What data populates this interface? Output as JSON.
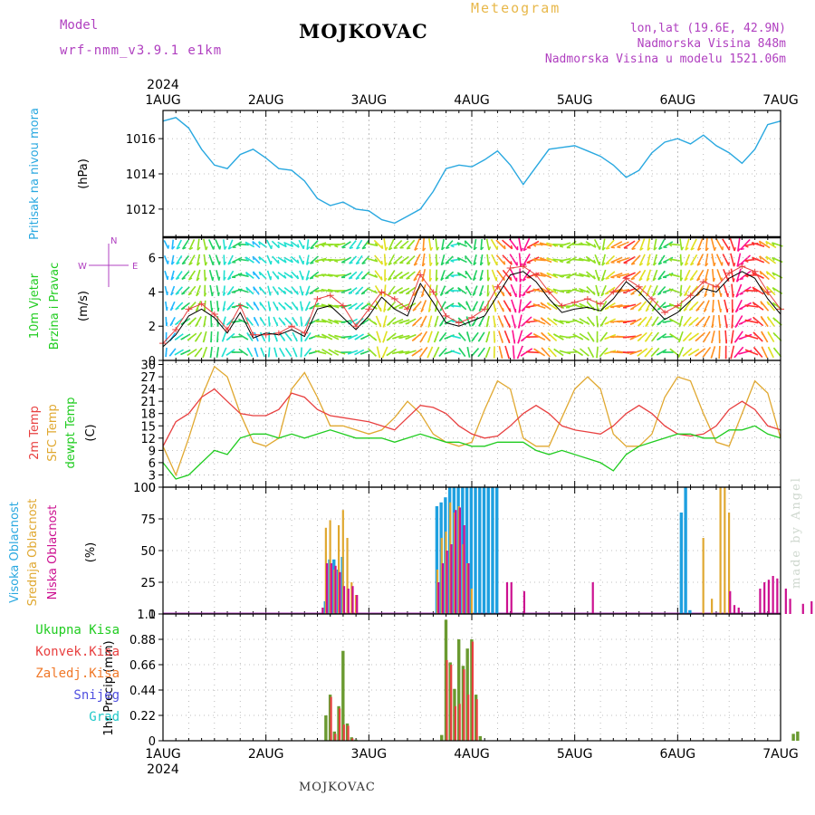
{
  "header": {
    "model_label": "Model",
    "model_name": "wrf-nmm_v3.9.1 e1km",
    "title": "Meteogram",
    "station": "MOJKOVAC",
    "lonlat": "lon,lat (19.6E, 42.9N)",
    "height": "Nadmorska Visina 848m",
    "model_height": "Nadmorska Visina u modelu 1521.06m"
  },
  "footer": {
    "station": "MOJKOVAC",
    "credit": "made by Angel"
  },
  "colors": {
    "pressure": "#29a8e0",
    "temp2m": "#e84040",
    "sfc_temp": "#e0a830",
    "dewpt": "#20cc20",
    "cloud_high": "#1ea0e0",
    "cloud_mid": "#e0a830",
    "cloud_low": "#cc1090",
    "precip_total": "#6a9a30",
    "precip_conv": "#e84040",
    "grid": "#aaaaaa",
    "label_purple": "#b040c0"
  },
  "chart_data": [
    {
      "type": "line",
      "panel": "pressure",
      "ylabel": [
        "Pritisak na nivou mora",
        "(hPa)"
      ],
      "x_ticks": [
        "1AUG",
        "2AUG",
        "3AUG",
        "4AUG",
        "5AUG",
        "6AUG",
        "7AUG"
      ],
      "x_year": "2024",
      "ylim": [
        1010.4,
        1017.6
      ],
      "yticks": [
        1012,
        1014,
        1016
      ],
      "x_unit": "hours from 1AUG 00",
      "x": [
        0,
        3,
        6,
        9,
        12,
        15,
        18,
        21,
        24,
        27,
        30,
        33,
        36,
        39,
        42,
        45,
        48,
        51,
        54,
        57,
        60,
        63,
        66,
        69,
        72,
        75,
        78,
        81,
        84,
        87,
        90,
        93,
        96,
        99,
        102,
        105,
        108,
        111,
        114,
        117,
        120,
        123,
        126,
        129,
        132,
        135,
        138,
        141,
        144
      ],
      "series": [
        {
          "values": [
            1017.0,
            1017.2,
            1016.6,
            1015.4,
            1014.5,
            1014.3,
            1015.1,
            1015.4,
            1014.9,
            1014.3,
            1014.2,
            1013.6,
            1012.6,
            1012.2,
            1012.4,
            1012.0,
            1011.9,
            1011.4,
            1011.2,
            1011.6,
            1012.0,
            1013.0,
            1014.3,
            1014.5,
            1014.4,
            1014.8,
            1015.3,
            1014.5,
            1013.4,
            1014.4,
            1015.4,
            1015.5,
            1015.6,
            1015.3,
            1015.0,
            1014.5,
            1013.8,
            1014.2,
            1015.2,
            1015.8,
            1016.0,
            1015.7,
            1016.2,
            1015.6,
            1015.2,
            1014.6,
            1015.4,
            1016.8,
            1017.0
          ]
        }
      ]
    },
    {
      "type": "line",
      "panel": "wind",
      "ylabel": [
        "10m Vjetar",
        "Brzina i Pravac",
        "(m/s)"
      ],
      "compass": [
        "N",
        "W",
        "E"
      ],
      "ylim": [
        0,
        7.2
      ],
      "yticks": [
        0,
        2,
        4,
        6
      ],
      "x_unit": "hours from 1AUG 00",
      "x": [
        0,
        3,
        6,
        9,
        12,
        15,
        18,
        21,
        24,
        27,
        30,
        33,
        36,
        39,
        42,
        45,
        48,
        51,
        54,
        57,
        60,
        63,
        66,
        69,
        72,
        75,
        78,
        81,
        84,
        87,
        90,
        93,
        96,
        99,
        102,
        105,
        108,
        111,
        114,
        117,
        120,
        123,
        126,
        129,
        132,
        135,
        138,
        141,
        144
      ],
      "series": [
        {
          "name": "speed",
          "values": [
            0.8,
            1.5,
            2.6,
            3.0,
            2.5,
            1.6,
            2.8,
            1.3,
            1.6,
            1.5,
            1.8,
            1.4,
            3.0,
            3.2,
            2.5,
            1.8,
            2.6,
            3.7,
            3.0,
            2.6,
            4.5,
            3.4,
            2.2,
            2.0,
            2.3,
            2.6,
            3.8,
            5.0,
            5.2,
            4.6,
            3.6,
            2.8,
            3.0,
            3.1,
            2.9,
            3.6,
            4.6,
            4.0,
            3.2,
            2.4,
            2.8,
            3.5,
            4.2,
            4.0,
            4.8,
            5.2,
            4.8,
            3.6,
            2.7
          ]
        },
        {
          "name": "gust",
          "values": [
            1.0,
            1.8,
            3.0,
            3.3,
            2.7,
            1.8,
            3.2,
            1.5,
            1.5,
            1.6,
            2.0,
            1.6,
            3.6,
            3.8,
            3.2,
            2.0,
            3.0,
            4.0,
            3.6,
            3.0,
            5.0,
            4.0,
            2.6,
            2.2,
            2.5,
            3.0,
            4.3,
            5.4,
            5.5,
            5.0,
            4.0,
            3.2,
            3.4,
            3.6,
            3.3,
            4.0,
            4.8,
            4.3,
            3.6,
            2.8,
            3.2,
            3.8,
            4.6,
            4.3,
            5.1,
            5.5,
            5.2,
            4.0,
            3.0
          ]
        }
      ]
    },
    {
      "type": "line",
      "panel": "temperature",
      "ylabel": [
        "2m Temp",
        "SFC Temp",
        "dewpt Temp",
        "(C)"
      ],
      "ylim": [
        0,
        31
      ],
      "yticks": [
        0,
        3,
        6,
        9,
        12,
        15,
        18,
        21,
        24,
        27,
        30
      ],
      "x_unit": "hours from 1AUG 00",
      "x": [
        0,
        3,
        6,
        9,
        12,
        15,
        18,
        21,
        24,
        27,
        30,
        33,
        36,
        39,
        42,
        45,
        48,
        51,
        54,
        57,
        60,
        63,
        66,
        69,
        72,
        75,
        78,
        81,
        84,
        87,
        90,
        93,
        96,
        99,
        102,
        105,
        108,
        111,
        114,
        117,
        120,
        123,
        126,
        129,
        132,
        135,
        138,
        141,
        144
      ],
      "series": [
        {
          "name": "2m Temp",
          "values": [
            10,
            16,
            18,
            22,
            24,
            21,
            18,
            17.5,
            17.5,
            19,
            23,
            22,
            19,
            17.5,
            17,
            16.5,
            16,
            15,
            14,
            17,
            20,
            19.5,
            18,
            15,
            13,
            12,
            12.5,
            15,
            18,
            20,
            18,
            15,
            14,
            13.5,
            13,
            15,
            18,
            20,
            18,
            15,
            13,
            12.5,
            13,
            15,
            19,
            21,
            19,
            15,
            14
          ]
        },
        {
          "name": "SFC Temp",
          "values": [
            10,
            3,
            12,
            22,
            29.5,
            27,
            18,
            11,
            10,
            12,
            24,
            28,
            22,
            15,
            15,
            14,
            13,
            14,
            17,
            21,
            18,
            13,
            11,
            10,
            11,
            19,
            26,
            24,
            12,
            10,
            10,
            17,
            24,
            27,
            24,
            13,
            10,
            10,
            13,
            22,
            27,
            26,
            18,
            11,
            10,
            18,
            26,
            23,
            12
          ]
        },
        {
          "name": "dewpt Temp",
          "values": [
            6,
            2,
            3,
            6,
            9,
            8,
            12,
            13,
            13,
            12,
            13,
            12,
            13,
            14,
            13,
            12,
            12,
            12,
            11,
            12,
            13,
            12,
            11,
            11,
            10,
            10,
            11,
            11,
            11,
            9,
            8,
            9,
            8,
            7,
            6,
            4,
            8,
            10,
            11,
            12,
            13,
            13,
            12,
            12,
            14,
            14,
            15,
            13,
            12
          ]
        }
      ]
    },
    {
      "type": "bar",
      "panel": "clouds",
      "ylabel": [
        "Visoka Oblacnost",
        "Srednja Oblacnost",
        "Niska Oblacnost",
        "(%)"
      ],
      "ylim": [
        0,
        100
      ],
      "yticks": [
        0,
        25,
        50,
        75,
        100
      ],
      "x_unit": "hours from 1AUG 00",
      "series": [
        {
          "name": "Visoka Oblacnost",
          "x": [
            38,
            39,
            40,
            41,
            42,
            64,
            65,
            66,
            67,
            68,
            69,
            70,
            71,
            72,
            73,
            74,
            75,
            76,
            77,
            78,
            121,
            122,
            123
          ],
          "values": [
            10,
            43,
            43,
            35,
            45,
            85,
            88,
            92,
            100,
            100,
            100,
            100,
            100,
            100,
            100,
            100,
            100,
            100,
            100,
            100,
            80,
            100,
            3
          ]
        },
        {
          "name": "Srednja Oblacnost",
          "x": [
            38,
            39,
            40,
            41,
            42,
            43,
            44,
            45,
            64,
            65,
            66,
            67,
            68,
            69,
            70,
            71,
            72,
            126,
            128,
            130,
            131,
            132
          ],
          "values": [
            68,
            74,
            35,
            70,
            82,
            60,
            25,
            15,
            35,
            60,
            65,
            88,
            80,
            85,
            55,
            40,
            20,
            60,
            12,
            100,
            100,
            80
          ]
        },
        {
          "name": "Niska Oblacnost",
          "x": [
            37,
            38,
            39,
            40,
            41,
            42,
            43,
            44,
            45,
            64,
            65,
            66,
            67,
            68,
            69,
            70,
            71,
            80,
            81,
            84,
            100,
            132,
            133,
            134,
            139,
            140,
            141,
            142,
            143,
            145,
            146,
            149,
            151,
            153,
            155
          ],
          "values": [
            5,
            40,
            40,
            38,
            33,
            22,
            20,
            22,
            15,
            25,
            40,
            50,
            55,
            82,
            84,
            70,
            40,
            25,
            25,
            18,
            25,
            18,
            7,
            5,
            20,
            25,
            27,
            30,
            28,
            20,
            12,
            8,
            10,
            8,
            38
          ]
        }
      ]
    },
    {
      "type": "bar",
      "panel": "precip",
      "ylabel": [
        "1hr Precip (mm)"
      ],
      "legend": [
        "Ukupna Kisa",
        "Konvek.Kisa",
        "Zaledj.Kisa",
        "Snijeg",
        "Grad"
      ],
      "ylim": [
        0,
        1.1
      ],
      "yticks": [
        0,
        0.22,
        0.44,
        0.66,
        0.88,
        1.1
      ],
      "x_unit": "hours from 1AUG 00",
      "series": [
        {
          "name": "Ukupna Kisa",
          "x": [
            38,
            39,
            40,
            41,
            42,
            43,
            44,
            45,
            65,
            66,
            67,
            68,
            69,
            70,
            71,
            72,
            73,
            74,
            147,
            148
          ],
          "values": [
            0.22,
            0.4,
            0.08,
            0.3,
            0.78,
            0.15,
            0.03,
            0.01,
            0.05,
            1.05,
            0.68,
            0.45,
            0.88,
            0.65,
            0.8,
            0.88,
            0.4,
            0.04,
            0.06,
            0.08
          ]
        },
        {
          "name": "Konvek.Kisa",
          "x": [
            39,
            40,
            41,
            42,
            43,
            44,
            66,
            67,
            68,
            69,
            70,
            71,
            72,
            73
          ],
          "values": [
            0.38,
            0.06,
            0.28,
            0.14,
            0.13,
            0.02,
            0.7,
            0.66,
            0.3,
            0.32,
            0.62,
            0.4,
            0.86,
            0.36
          ]
        }
      ]
    }
  ],
  "precip_legend": [
    {
      "label": "Ukupna Kisa",
      "color": "#20cc20"
    },
    {
      "label": "Konvek.Kisa",
      "color": "#e84040"
    },
    {
      "label": "Zaledj.Kisa",
      "color": "#f07828"
    },
    {
      "label": "Snijeg",
      "color": "#5050e0"
    },
    {
      "label": "Grad",
      "color": "#20c8c8"
    }
  ],
  "axis_labels": {
    "pressure": [
      {
        "text": "Pritisak na nivou mora",
        "color": "#29a8e0"
      },
      {
        "text": "(hPa)",
        "color": "#000000"
      }
    ],
    "wind": [
      {
        "text": "10m Vjetar",
        "color": "#20cc20"
      },
      {
        "text": "Brzina i Pravac",
        "color": "#20cc20"
      },
      {
        "text": "(m/s)",
        "color": "#000000"
      }
    ],
    "temperature": [
      {
        "text": "2m Temp",
        "color": "#e84040"
      },
      {
        "text": "SFC Temp",
        "color": "#e0a830"
      },
      {
        "text": "dewpt Temp",
        "color": "#20cc20"
      },
      {
        "text": "(C)",
        "color": "#000000"
      }
    ],
    "clouds": [
      {
        "text": "Visoka Oblacnost",
        "color": "#29a8e0"
      },
      {
        "text": "Srednja Oblacnost",
        "color": "#e0a830"
      },
      {
        "text": "Niska Oblacnost",
        "color": "#cc1090"
      },
      {
        "text": "(%)",
        "color": "#000000"
      }
    ],
    "precip": [
      {
        "text": "1hr Precip (mm)",
        "color": "#000000"
      }
    ]
  }
}
